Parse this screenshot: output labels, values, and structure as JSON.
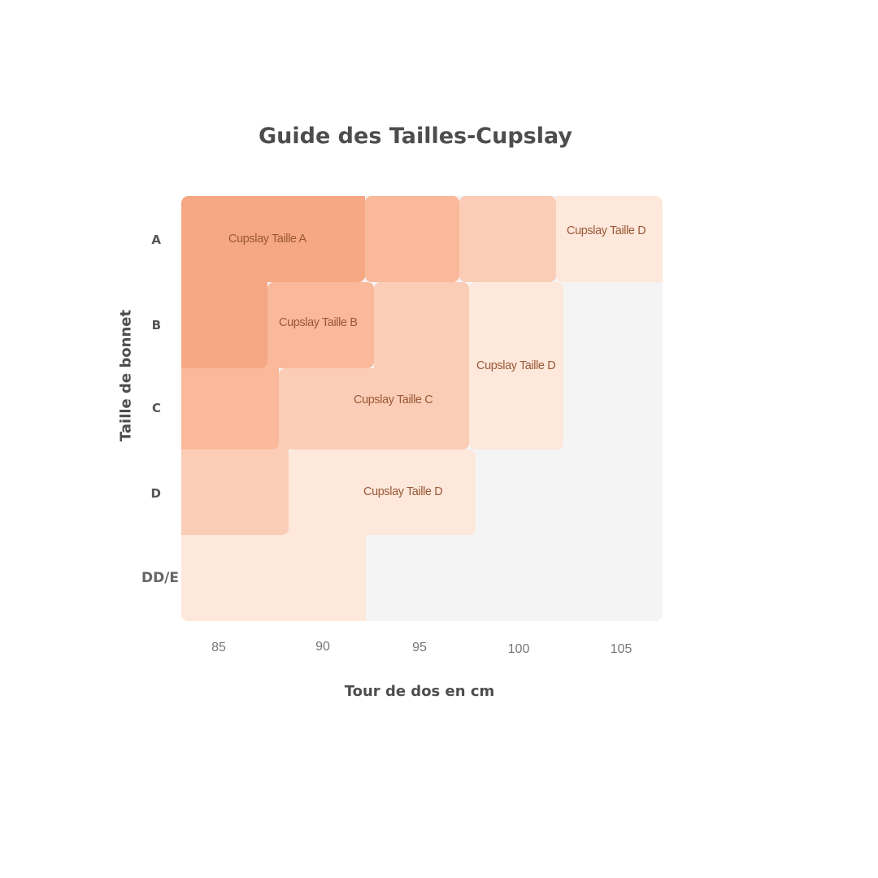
{
  "title": "Guide des Tailles-Cupslay",
  "y_axis_label": "Taille de bonnet",
  "x_axis_label": "Tour de dos en cm",
  "row_labels": [
    "A",
    "B",
    "C",
    "D",
    "DD/E"
  ],
  "col_labels": [
    "85",
    "90",
    "95",
    "100",
    "105"
  ],
  "colors": {
    "size_a": "#f6a783",
    "size_b": "#f9b99a",
    "size_c": "#fbcdb6",
    "size_d": "#fde8db",
    "none": "#f4f4f5",
    "label": "#9a5837"
  },
  "regions": [
    {
      "label": "Cupslay Taille A"
    },
    {
      "label": "Cupslay Taille  B"
    },
    {
      "label": "Cupslay Taille  C"
    },
    {
      "label": "Cupslay Taille  D"
    },
    {
      "label": "Cupslay Taille  D"
    },
    {
      "label": "Cupslay Taille  D"
    }
  ]
}
